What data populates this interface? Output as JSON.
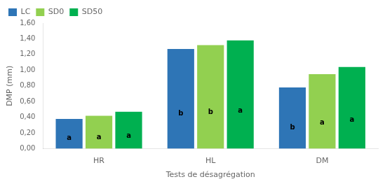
{
  "chart_data": {
    "type": "bar",
    "categories": [
      "HR",
      "HL",
      "DM"
    ],
    "series": [
      {
        "name": "LC",
        "color": "#2E75B6",
        "values": [
          0.38,
          1.27,
          0.78
        ],
        "letters": [
          "a",
          "b",
          "b"
        ]
      },
      {
        "name": "SD0",
        "color": "#92D050",
        "values": [
          0.42,
          1.32,
          0.95
        ],
        "letters": [
          "a",
          "b",
          "a"
        ]
      },
      {
        "name": "SD50",
        "color": "#00B050",
        "values": [
          0.47,
          1.38,
          1.04
        ],
        "letters": [
          "a",
          "a",
          "a"
        ]
      }
    ],
    "x_label": "Tests de désagrégation",
    "y_label": "DMP (mm)",
    "ylim": [
      0,
      1.6
    ],
    "yticks": [
      {
        "value": 0,
        "label": "0,00"
      },
      {
        "value": 0.2,
        "label": "0,20"
      },
      {
        "value": 0.4,
        "label": "0,40"
      },
      {
        "value": 0.6,
        "label": "0,60"
      },
      {
        "value": 0.8,
        "label": "0,80"
      },
      {
        "value": 1.0,
        "label": "1,00"
      },
      {
        "value": 1.2,
        "label": "1,20"
      },
      {
        "value": 1.4,
        "label": "1,40"
      },
      {
        "value": 1.6,
        "label": "1,60"
      }
    ],
    "grid": false,
    "legend": "upper left"
  }
}
